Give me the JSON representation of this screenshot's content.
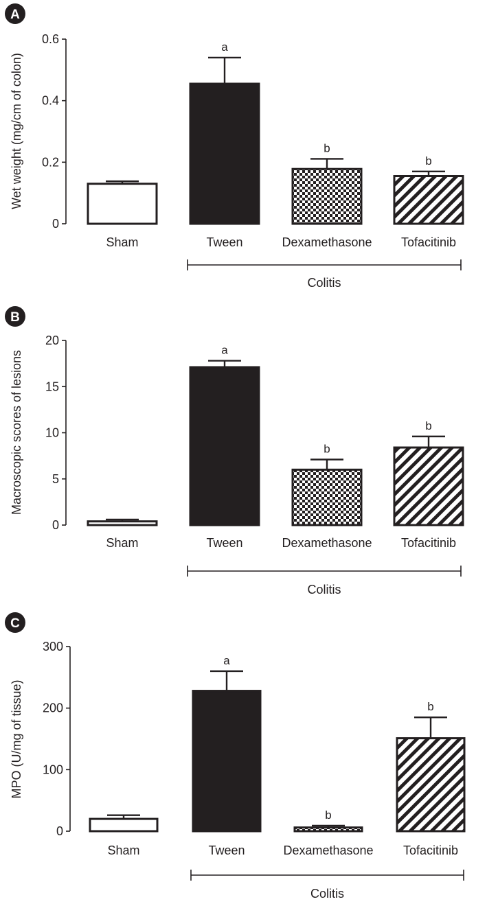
{
  "colors": {
    "ink": "#231f20",
    "background": "#ffffff"
  },
  "chart_data": [
    {
      "panel": "A",
      "type": "bar",
      "ylabel": "Wet weight (mg/cm of colon)",
      "categories": [
        "Sham",
        "Tween",
        "Dexamethasone",
        "Tofacitinib"
      ],
      "values": [
        0.13,
        0.455,
        0.178,
        0.155
      ],
      "errors": [
        0.008,
        0.085,
        0.033,
        0.015
      ],
      "significance": [
        "",
        "a",
        "b",
        "b"
      ],
      "fills": [
        "open",
        "solid",
        "checker",
        "hatch"
      ],
      "ylim": [
        0,
        0.6
      ],
      "yticks": [
        0,
        0.2,
        0.4,
        0.6
      ],
      "yticklabels": [
        "0",
        "0.2",
        "0.4",
        "0.6"
      ],
      "group_label": "Colitis",
      "group_categories": [
        "Tween",
        "Dexamethasone",
        "Tofacitinib"
      ]
    },
    {
      "panel": "B",
      "type": "bar",
      "ylabel": "Macroscopic scores of lesions",
      "categories": [
        "Sham",
        "Tween",
        "Dexamethasone",
        "Tofacitinib"
      ],
      "values": [
        0.4,
        17.1,
        6.0,
        8.4
      ],
      "errors": [
        0.2,
        0.7,
        1.1,
        1.2
      ],
      "significance": [
        "",
        "a",
        "b",
        "b"
      ],
      "fills": [
        "open",
        "solid",
        "checker",
        "hatch"
      ],
      "ylim": [
        0,
        20
      ],
      "yticks": [
        0,
        5,
        10,
        15,
        20
      ],
      "yticklabels": [
        "0",
        "5",
        "10",
        "15",
        "20"
      ],
      "group_label": "Colitis",
      "group_categories": [
        "Tween",
        "Dexamethasone",
        "Tofacitinib"
      ]
    },
    {
      "panel": "C",
      "type": "bar",
      "ylabel": "MPO (U/mg of tissue)",
      "categories": [
        "Sham",
        "Tween",
        "Dexamethasone",
        "Tofacitinib"
      ],
      "values": [
        20,
        228,
        6,
        151
      ],
      "errors": [
        6,
        32,
        3,
        34
      ],
      "significance": [
        "",
        "a",
        "b",
        "b"
      ],
      "fills": [
        "open",
        "solid",
        "checker",
        "hatch"
      ],
      "ylim": [
        0,
        300
      ],
      "yticks": [
        0,
        100,
        200,
        300
      ],
      "yticklabels": [
        "0",
        "100",
        "200",
        "300"
      ],
      "group_label": "Colitis",
      "group_categories": [
        "Tween",
        "Dexamethasone",
        "Tofacitinib"
      ]
    }
  ]
}
